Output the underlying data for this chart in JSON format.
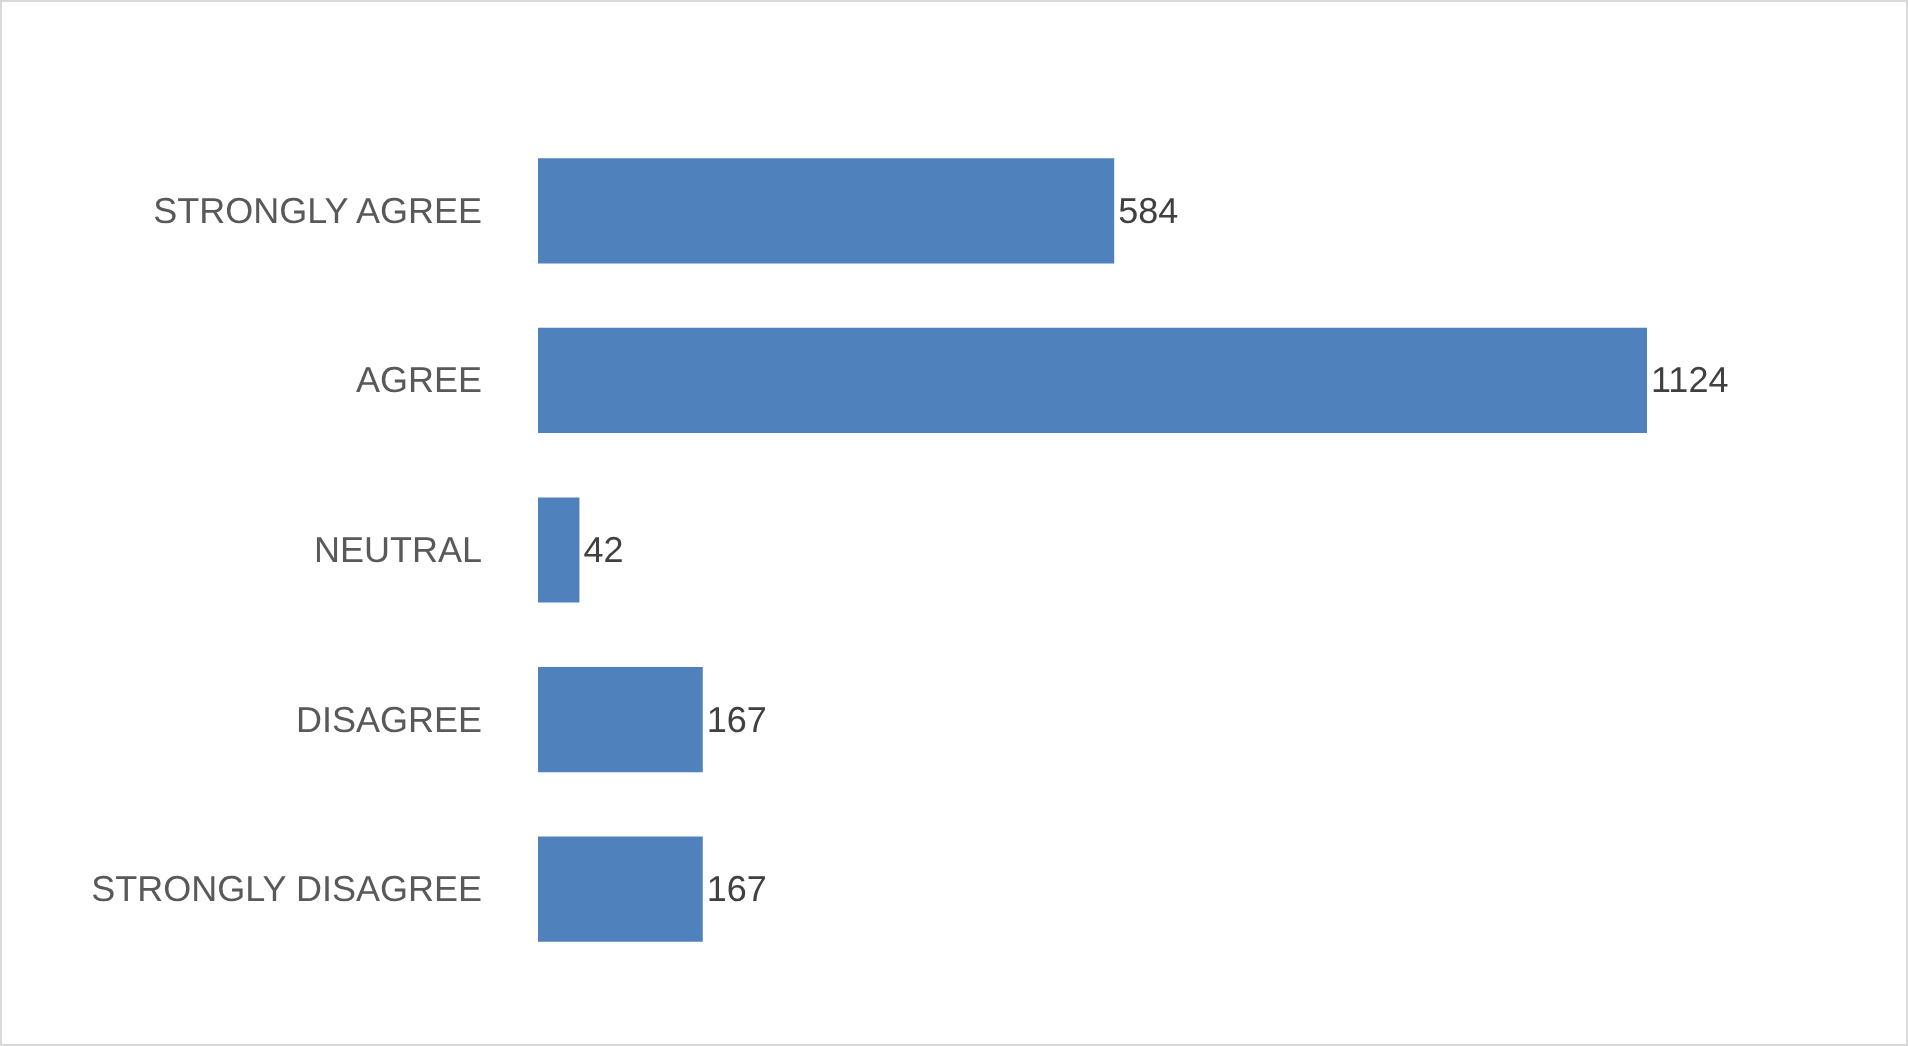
{
  "chart_data": {
    "type": "bar",
    "orientation": "horizontal",
    "categories": [
      "STRONGLY AGREE",
      "AGREE",
      "NEUTRAL",
      "DISAGREE",
      "STRONGLY DISAGREE"
    ],
    "values": [
      584,
      1124,
      42,
      167,
      167
    ],
    "color": "#4f81bd",
    "data_labels": true
  }
}
